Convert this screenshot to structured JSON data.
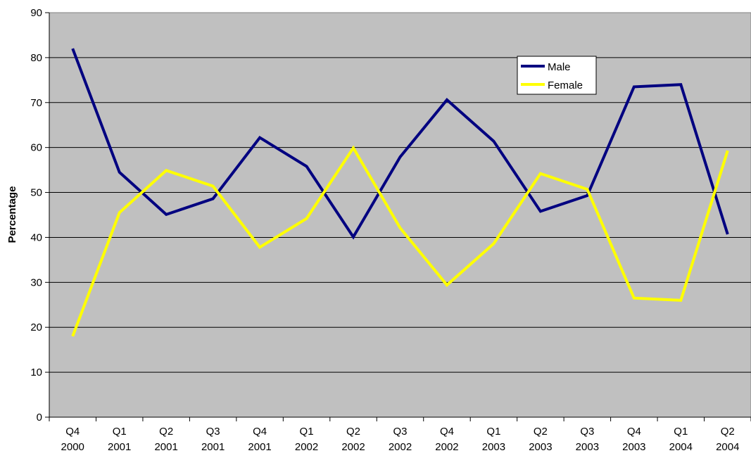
{
  "chart_data": {
    "type": "line",
    "title": "",
    "xlabel": "",
    "ylabel": "Percentage",
    "ylim": [
      0,
      90
    ],
    "ytick_step": 10,
    "grid": "horizontal",
    "legend_position": "top-right",
    "plot_background": "#c0c0c0",
    "categories": [
      [
        "Q4",
        "2000"
      ],
      [
        "Q1",
        "2001"
      ],
      [
        "Q2",
        "2001"
      ],
      [
        "Q3",
        "2001"
      ],
      [
        "Q4",
        "2001"
      ],
      [
        "Q1",
        "2002"
      ],
      [
        "Q2",
        "2002"
      ],
      [
        "Q3",
        "2002"
      ],
      [
        "Q4",
        "2002"
      ],
      [
        "Q1",
        "2003"
      ],
      [
        "Q2",
        "2003"
      ],
      [
        "Q3",
        "2003"
      ],
      [
        "Q4",
        "2003"
      ],
      [
        "Q1",
        "2004"
      ],
      [
        "Q2",
        "2004"
      ]
    ],
    "series": [
      {
        "name": "Male",
        "color": "#000080",
        "values": [
          82,
          54.5,
          45.1,
          48.6,
          62.2,
          55.8,
          40.1,
          57.9,
          70.6,
          61.4,
          45.8,
          49.3,
          73.5,
          74,
          40.7
        ]
      },
      {
        "name": "Female",
        "color": "#ffff00",
        "values": [
          18,
          45.5,
          54.9,
          51.4,
          37.8,
          44.2,
          59.9,
          42.1,
          29.4,
          38.6,
          54.2,
          50.7,
          26.5,
          26,
          59.3
        ]
      }
    ]
  }
}
